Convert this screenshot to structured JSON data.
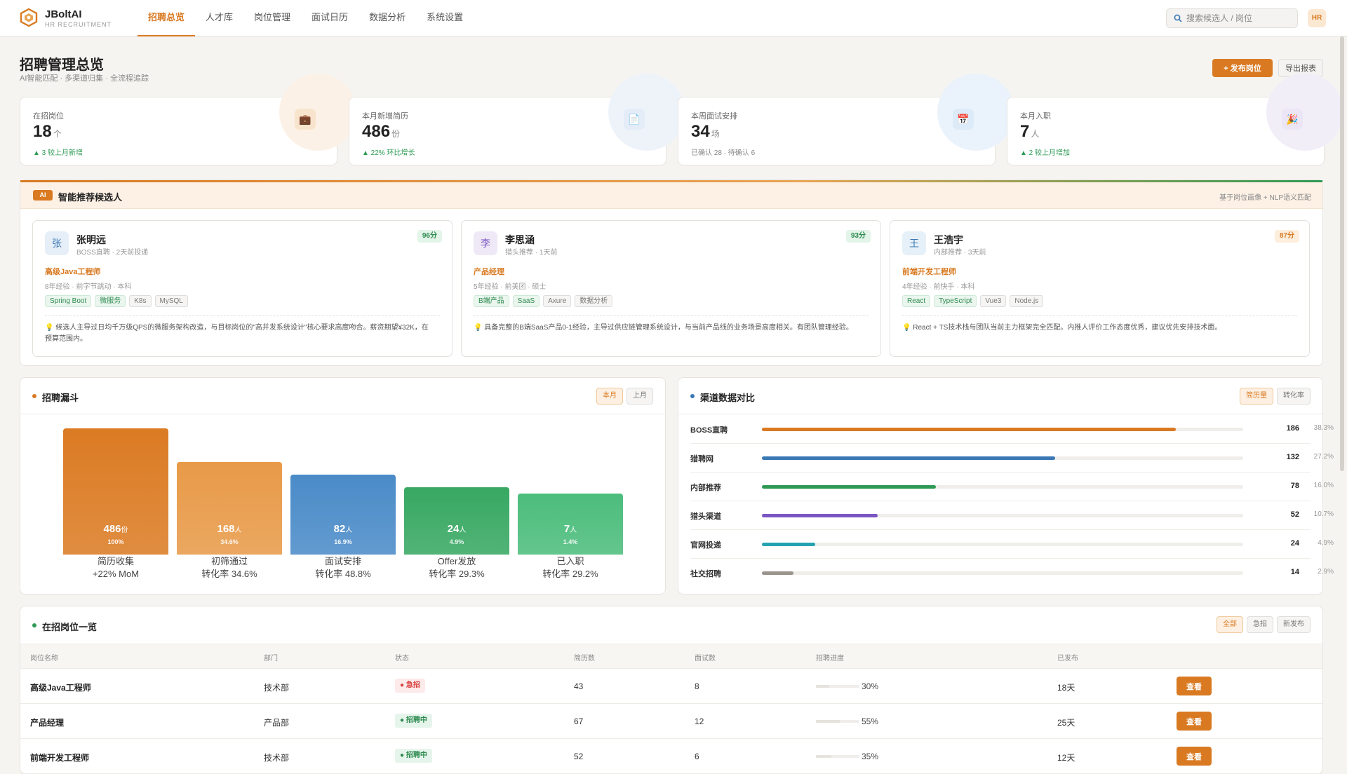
{
  "app": {
    "name": "JBoltAI",
    "subtitle": "HR RECRUITMENT"
  },
  "nav": [
    "招聘总览",
    "人才库",
    "岗位管理",
    "面试日历",
    "数据分析",
    "系统设置"
  ],
  "search": {
    "placeholder": "搜索候选人 / 岗位",
    "value": ""
  },
  "user": {
    "avatar": "HR"
  },
  "header": {
    "title": "招聘管理总览",
    "subtitle": "AI智能匹配 · 多渠道归集 · 全流程追踪",
    "publish_label": "+ 发布岗位",
    "export_label": "导出报表"
  },
  "stats": [
    {
      "label": "在招岗位",
      "value": "18",
      "unit": "个",
      "note": "▲ 3 较上月新增",
      "icon": "briefcase-icon",
      "glyph": "💼"
    },
    {
      "label": "本月新增简历",
      "value": "486",
      "unit": "份",
      "note": "▲ 22% 环比增长",
      "icon": "document-icon",
      "glyph": "📄"
    },
    {
      "label": "本周面试安排",
      "value": "34",
      "unit": "场",
      "note": "已确认 28 · 待确认 6",
      "icon": "calendar-icon",
      "glyph": "📅"
    },
    {
      "label": "本月入职",
      "value": "7",
      "unit": "人",
      "note": "▲ 2 较上月增加",
      "icon": "party-icon",
      "glyph": "🎉"
    }
  ],
  "ai": {
    "badge": "AI",
    "title": "智能推荐候选人",
    "hint": "基于岗位画像 + NLP语义匹配",
    "candidates": [
      {
        "avatar": "张",
        "name": "张明远",
        "source": "BOSS直聘 · 2天前投递",
        "score": "96分",
        "role": "高级Java工程师",
        "meta": "8年经验 · 前字节跳动 · 本科",
        "tags": [
          "Spring Boot",
          "微服务",
          "K8s",
          "MySQL"
        ],
        "reason": "💡 候选人主导过日均千万级QPS的微服务架构改造，与目标岗位的\"高并发系统设计\"核心要求高度吻合。薪资期望¥32K，在预算范围内。"
      },
      {
        "avatar": "李",
        "name": "李思涵",
        "source": "猎头推荐 · 1天前",
        "score": "93分",
        "role": "产品经理",
        "meta": "5年经验 · 前美团 · 硕士",
        "tags": [
          "B端产品",
          "SaaS",
          "Axure",
          "数据分析"
        ],
        "reason": "💡 具备完整的B端SaaS产品0-1经验，主导过供应链管理系统设计，与当前产品线的业务场景高度相关。有团队管理经验。"
      },
      {
        "avatar": "王",
        "name": "王浩宇",
        "source": "内部推荐 · 3天前",
        "score": "87分",
        "role": "前端开发工程师",
        "meta": "4年经验 · 前快手 · 本科",
        "tags": [
          "React",
          "TypeScript",
          "Vue3",
          "Node.js"
        ],
        "reason": "💡 React + TS技术栈与团队当前主力框架完全匹配。内推人评价工作态度优秀，建议优先安排技术面。"
      }
    ]
  },
  "funnel": {
    "title": "招聘漏斗",
    "tabs": [
      "本月",
      "上月"
    ],
    "chart_data": {
      "type": "bar",
      "categories": [
        "简历收集",
        "初筛通过",
        "面试安排",
        "Offer发放",
        "已入职"
      ],
      "values": [
        486,
        168,
        82,
        24,
        7
      ],
      "units": [
        "份",
        "人",
        "人",
        "人",
        "人"
      ],
      "percents": [
        "100%",
        "34.6%",
        "16.9%",
        "4.9%",
        "1.4%"
      ],
      "notes": [
        "+22% MoM",
        "转化率 34.6%",
        "转化率 48.8%",
        "转化率 29.3%",
        "转化率 29.2%"
      ],
      "colors": [
        "#db7b23",
        "#e89a48",
        "#4a8bc8",
        "#37a862",
        "#4cbd7c"
      ]
    }
  },
  "channels": {
    "title": "渠道数据对比",
    "tabs": [
      "简历量",
      "转化率"
    ],
    "chart_data": {
      "type": "bar",
      "categories": [
        "BOSS直聘",
        "猎聘网",
        "内部推荐",
        "猎头渠道",
        "官网投递",
        "社交招聘"
      ],
      "values": [
        186,
        132,
        78,
        52,
        24,
        14
      ],
      "percents": [
        "38.3%",
        "27.2%",
        "16.0%",
        "10.7%",
        "4.9%",
        "2.9%"
      ],
      "colors": [
        "#d97a22",
        "#3a78b5",
        "#2e9a55",
        "#7a56c2",
        "#25a3b0",
        "#9b948c"
      ]
    }
  },
  "jobs": {
    "title": "在招岗位一览",
    "filters": [
      "全部",
      "急招",
      "新发布"
    ],
    "columns": [
      "岗位名称",
      "部门",
      "状态",
      "简历数",
      "面试数",
      "招聘进度",
      "已发布"
    ],
    "view_label": "查看",
    "rows": [
      {
        "name": "高级Java工程师",
        "dept": "技术部",
        "status": "● 急招",
        "status_type": "urgent",
        "resumes": "43",
        "interviews": "8",
        "progress": 30,
        "progress_text": "30%",
        "published": "18天"
      },
      {
        "name": "产品经理",
        "dept": "产品部",
        "status": "● 招聘中",
        "status_type": "open",
        "resumes": "67",
        "interviews": "12",
        "progress": 55,
        "progress_text": "55%",
        "published": "25天"
      },
      {
        "name": "前端开发工程师",
        "dept": "技术部",
        "status": "● 招聘中",
        "status_type": "open",
        "resumes": "52",
        "interviews": "6",
        "progress": 35,
        "progress_text": "35%",
        "published": "12天"
      }
    ]
  },
  "colors": {
    "accent": "#d97a22",
    "success": "#2e9a55",
    "danger": "#d84040"
  }
}
